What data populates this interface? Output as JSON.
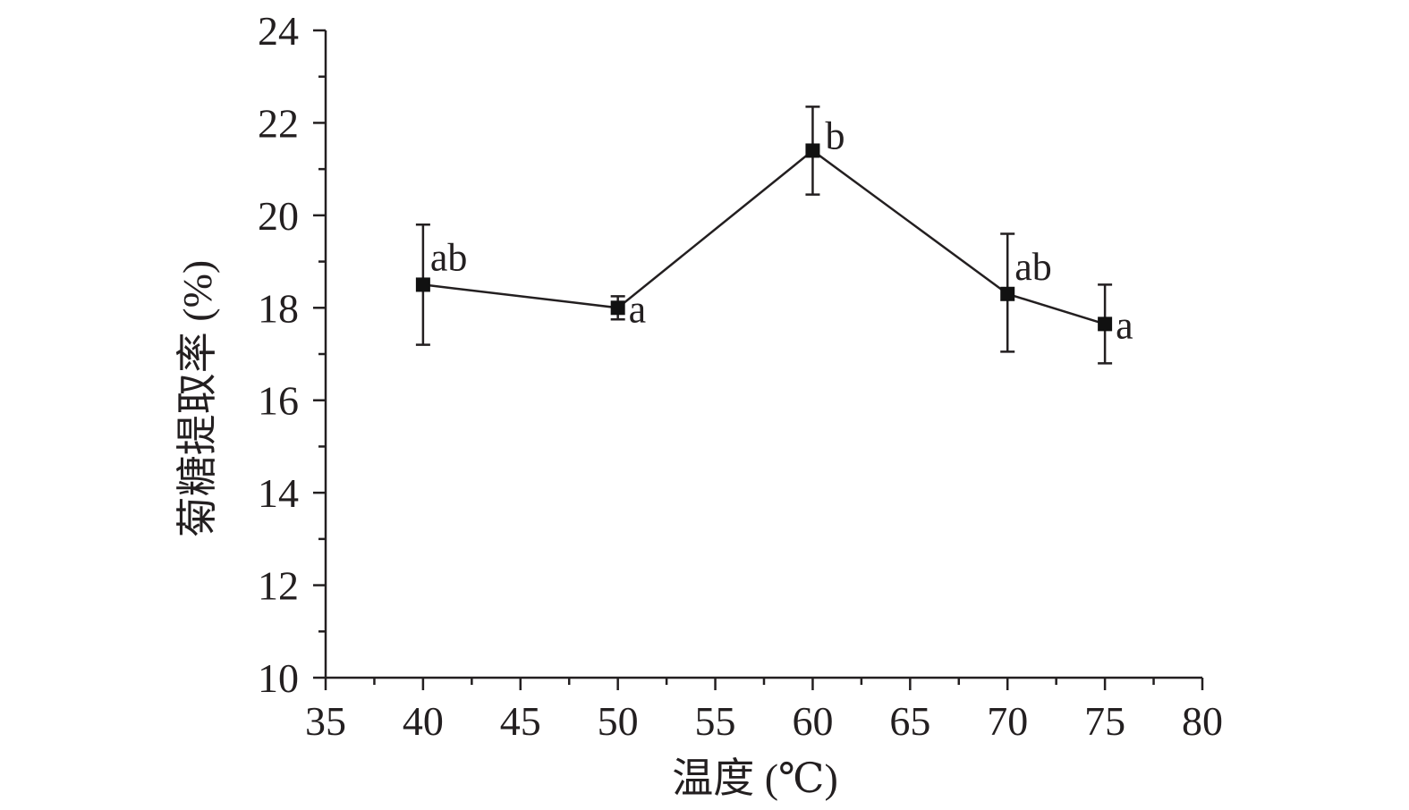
{
  "chart_data": {
    "type": "line",
    "xlabel": "温度 (℃)",
    "ylabel": "菊糖提取率 (%)",
    "xlim": [
      35,
      80
    ],
    "ylim": [
      10,
      24
    ],
    "xticks": [
      35,
      40,
      45,
      50,
      55,
      60,
      65,
      70,
      75,
      80
    ],
    "yticks": [
      10,
      12,
      14,
      16,
      18,
      20,
      22,
      24
    ],
    "grid": false,
    "series": [
      {
        "points": [
          {
            "x": 40,
            "y": 18.5,
            "err_high": 19.8,
            "err_low": 17.2,
            "label": "ab"
          },
          {
            "x": 50,
            "y": 18.0,
            "err_high": 18.25,
            "err_low": 17.75,
            "label": "a"
          },
          {
            "x": 60,
            "y": 21.4,
            "err_high": 22.35,
            "err_low": 20.45,
            "label": "b"
          },
          {
            "x": 70,
            "y": 18.3,
            "err_high": 19.6,
            "err_low": 17.05,
            "label": "ab"
          },
          {
            "x": 75,
            "y": 17.65,
            "err_high": 18.5,
            "err_low": 16.8,
            "label": "a"
          }
        ]
      }
    ]
  }
}
